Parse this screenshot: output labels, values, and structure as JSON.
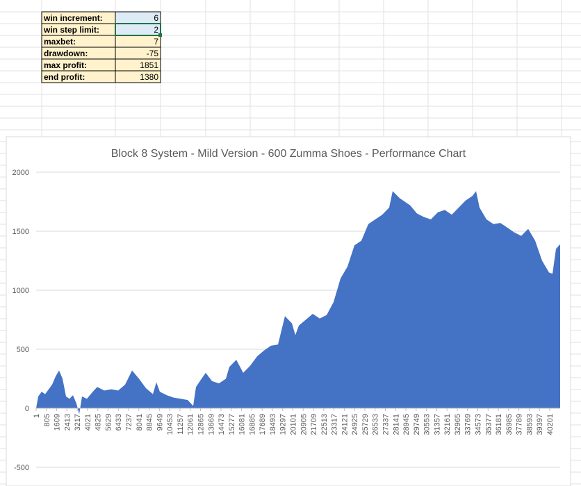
{
  "table": {
    "rows": [
      [
        "win increment:",
        6
      ],
      [
        "win step limit:",
        2
      ],
      [
        "maxbet:",
        7
      ],
      [
        "drawdown:",
        -75
      ],
      [
        "max profit:",
        1851
      ],
      [
        "end profit:",
        1380
      ]
    ]
  },
  "chart_data": {
    "type": "area",
    "title": "Block 8 System - Mild Version - 600 Zumma Shoes - Performance Chart",
    "color": "#4472c4",
    "grid": true,
    "xlim": [
      1,
      41018
    ],
    "ylim": [
      -500,
      2000
    ],
    "yticks": [
      -500,
      0,
      500,
      1000,
      1500,
      2000
    ],
    "xticks": [
      1,
      805,
      1609,
      2413,
      3217,
      4021,
      4825,
      5629,
      6433,
      7237,
      8041,
      8845,
      9649,
      10453,
      11257,
      12061,
      12865,
      13669,
      14473,
      15277,
      16081,
      16885,
      17689,
      18493,
      19297,
      20101,
      20905,
      21709,
      22513,
      23317,
      24121,
      24925,
      25729,
      26533,
      27337,
      28141,
      28945,
      29749,
      30553,
      31357,
      32161,
      32965,
      33769,
      34573,
      35377,
      36181,
      36985,
      37789,
      38593,
      39397,
      40201
    ],
    "x": [
      1,
      164,
      436,
      708,
      980,
      1252,
      1524,
      1796,
      2068,
      2340,
      2612,
      2884,
      3156,
      3374,
      3591,
      3972,
      4516,
      4788,
      5332,
      5876,
      6420,
      6964,
      7508,
      8052,
      8596,
      9140,
      9412,
      9684,
      10228,
      10772,
      11316,
      11860,
      12295,
      12513,
      12948,
      13275,
      13764,
      14308,
      14852,
      15124,
      15668,
      16212,
      16756,
      17300,
      17844,
      18388,
      18932,
      19476,
      20020,
      20292,
      20564,
      21108,
      21652,
      22196,
      22740,
      23284,
      23828,
      24372,
      24916,
      25460,
      26004,
      26548,
      27092,
      27636,
      27908,
      28452,
      29268,
      29812,
      30356,
      30900,
      31444,
      31988,
      32532,
      33076,
      33620,
      34164,
      34436,
      34708,
      35252,
      35796,
      36340,
      36884,
      37428,
      37972,
      38516,
      39060,
      39604,
      40148,
      40420,
      40692,
      41018
    ],
    "values": [
      0,
      100,
      140,
      120,
      160,
      200,
      270,
      320,
      250,
      100,
      80,
      110,
      40,
      -50,
      100,
      80,
      150,
      180,
      150,
      160,
      150,
      200,
      320,
      250,
      170,
      120,
      220,
      140,
      110,
      90,
      80,
      70,
      20,
      180,
      250,
      300,
      230,
      210,
      250,
      350,
      410,
      300,
      360,
      440,
      490,
      530,
      540,
      780,
      720,
      620,
      700,
      750,
      800,
      760,
      790,
      900,
      1100,
      1200,
      1380,
      1420,
      1560,
      1600,
      1640,
      1700,
      1840,
      1780,
      1720,
      1650,
      1620,
      1600,
      1660,
      1680,
      1640,
      1700,
      1760,
      1800,
      1840,
      1700,
      1600,
      1560,
      1570,
      1530,
      1490,
      1460,
      1520,
      1420,
      1250,
      1150,
      1140,
      1350,
      1390
    ]
  }
}
